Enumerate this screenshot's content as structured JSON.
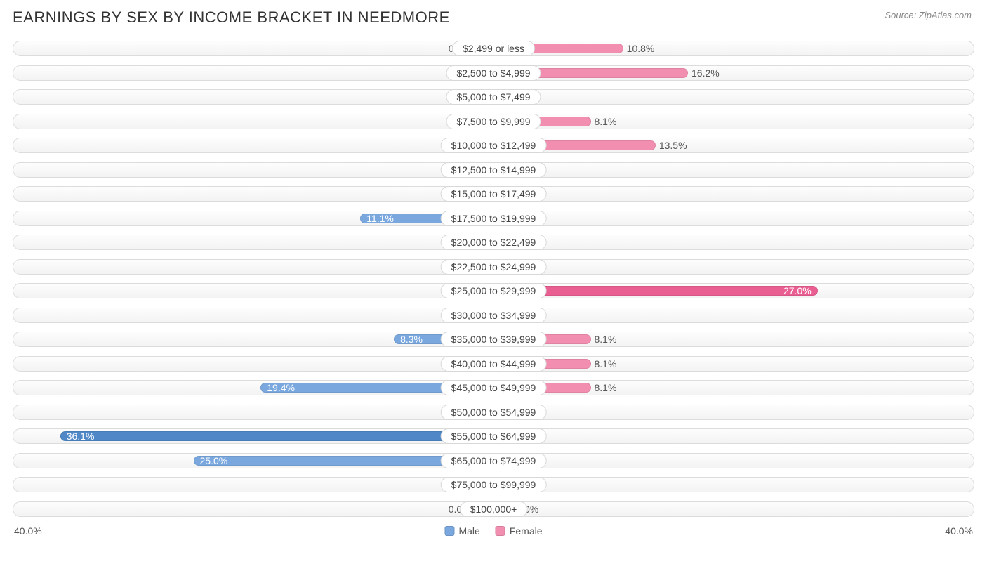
{
  "title": "EARNINGS BY SEX BY INCOME BRACKET IN NEEDMORE",
  "source": "Source: ZipAtlas.com",
  "axis_max": 40.0,
  "axis_label_left": "40.0%",
  "axis_label_right": "40.0%",
  "min_bar_pct": 4.0,
  "colors": {
    "male": "#7aa8de",
    "male_highlight": "#4f87c7",
    "female": "#f28fb0",
    "female_highlight": "#e95f92",
    "track_border": "#dcdcdc",
    "text": "#555555",
    "title": "#333333"
  },
  "legend": [
    {
      "label": "Male",
      "color_key": "male"
    },
    {
      "label": "Female",
      "color_key": "female"
    }
  ],
  "rows": [
    {
      "category": "$2,499 or less",
      "male": 0.0,
      "female": 10.8
    },
    {
      "category": "$2,500 to $4,999",
      "male": 0.0,
      "female": 16.2
    },
    {
      "category": "$5,000 to $7,499",
      "male": 0.0,
      "female": 0.0
    },
    {
      "category": "$7,500 to $9,999",
      "male": 0.0,
      "female": 8.1
    },
    {
      "category": "$10,000 to $12,499",
      "male": 0.0,
      "female": 13.5
    },
    {
      "category": "$12,500 to $14,999",
      "male": 0.0,
      "female": 0.0
    },
    {
      "category": "$15,000 to $17,499",
      "male": 0.0,
      "female": 0.0
    },
    {
      "category": "$17,500 to $19,999",
      "male": 11.1,
      "female": 0.0
    },
    {
      "category": "$20,000 to $22,499",
      "male": 0.0,
      "female": 0.0
    },
    {
      "category": "$22,500 to $24,999",
      "male": 0.0,
      "female": 0.0
    },
    {
      "category": "$25,000 to $29,999",
      "male": 0.0,
      "female": 27.0
    },
    {
      "category": "$30,000 to $34,999",
      "male": 0.0,
      "female": 0.0
    },
    {
      "category": "$35,000 to $39,999",
      "male": 8.3,
      "female": 8.1
    },
    {
      "category": "$40,000 to $44,999",
      "male": 0.0,
      "female": 8.1
    },
    {
      "category": "$45,000 to $49,999",
      "male": 19.4,
      "female": 8.1
    },
    {
      "category": "$50,000 to $54,999",
      "male": 0.0,
      "female": 0.0
    },
    {
      "category": "$55,000 to $64,999",
      "male": 36.1,
      "female": 0.0
    },
    {
      "category": "$65,000 to $74,999",
      "male": 25.0,
      "female": 0.0
    },
    {
      "category": "$75,000 to $99,999",
      "male": 0.0,
      "female": 0.0
    },
    {
      "category": "$100,000+",
      "male": 0.0,
      "female": 0.0
    }
  ]
}
